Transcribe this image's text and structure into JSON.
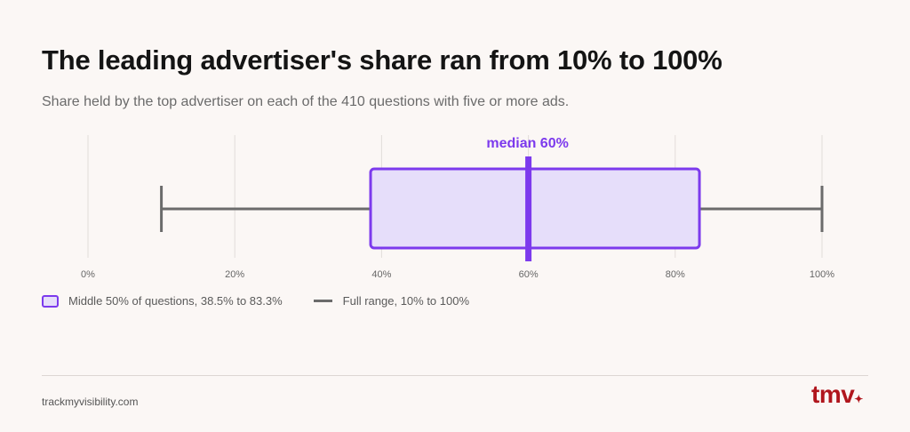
{
  "title": "The leading advertiser's share ran from 10% to 100%",
  "subtitle": "Share held by the top advertiser on each of the 410 questions with five or more ads.",
  "chart_data": {
    "type": "boxplot",
    "min": 10,
    "q1": 38.5,
    "median": 60,
    "q3": 83.3,
    "max": 100,
    "xlim": [
      0,
      100
    ],
    "ticks": [
      0,
      20,
      40,
      60,
      80,
      100
    ],
    "tick_labels": [
      "0%",
      "20%",
      "40%",
      "60%",
      "80%",
      "100%"
    ],
    "median_label": "median 60%",
    "grid": true,
    "colors": {
      "box_fill": "#e6defa",
      "box_stroke": "#7c3aed",
      "whisker": "#6b6b6b",
      "median": "#7c3aed"
    }
  },
  "legend": {
    "box_label": "Middle 50% of questions, 38.5% to 83.3%",
    "line_label": "Full range, 10% to 100%"
  },
  "footer": {
    "url": "trackmyvisibility.com",
    "logo_text": "tmv",
    "logo_mark": "✦"
  }
}
